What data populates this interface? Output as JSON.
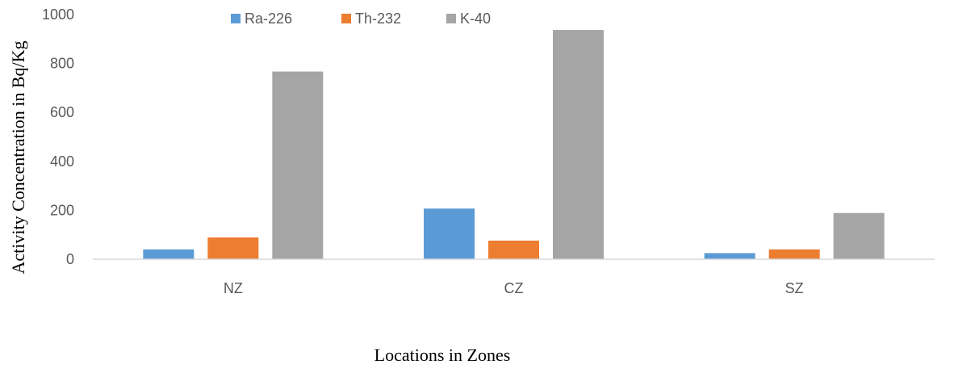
{
  "chart_data": {
    "type": "bar",
    "categories": [
      "NZ",
      "CZ",
      "SZ"
    ],
    "series": [
      {
        "name": "Ra-226",
        "values": [
          40,
          207,
          25
        ],
        "color": "#5b9bd5"
      },
      {
        "name": "Th-232",
        "values": [
          89,
          76,
          40
        ],
        "color": "#ed7d31"
      },
      {
        "name": "K-40",
        "values": [
          767,
          937,
          189
        ],
        "color": "#a5a5a5"
      }
    ],
    "title": "",
    "xlabel": "Locations in Zones",
    "ylabel": "Activity Concentration in Bq/Kg",
    "ylim": [
      0,
      1000
    ],
    "yticks": [
      0,
      200,
      400,
      600,
      800,
      1000
    ],
    "grid": false,
    "legend": "top"
  }
}
